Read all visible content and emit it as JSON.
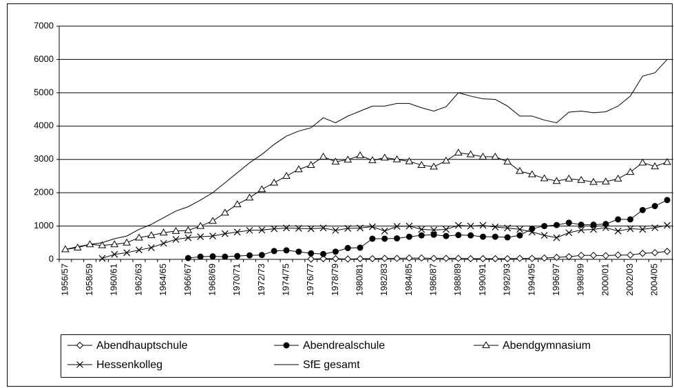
{
  "chart_data": {
    "type": "line",
    "categories": [
      "1956/57",
      null,
      "1958/59",
      null,
      "1960/61",
      null,
      "1962/63",
      null,
      "1964/65",
      null,
      "1966/67",
      null,
      "1968/69",
      null,
      "1970/71",
      null,
      "1972/73",
      null,
      "1974/75",
      null,
      "1976/77",
      null,
      "1978/79",
      null,
      "1980/81",
      null,
      "1982/83",
      null,
      "1984/85",
      null,
      "1986/87",
      null,
      "1988/89",
      null,
      "1990/91",
      null,
      "1992/93",
      null,
      "1994/95",
      null,
      "1996/97",
      null,
      "1998/99",
      null,
      "2000/01",
      null,
      "2002/03",
      null,
      "2004/05",
      null
    ],
    "ylim": [
      0,
      7000
    ],
    "yticks": [
      0,
      1000,
      2000,
      3000,
      4000,
      5000,
      6000,
      7000
    ],
    "grid": true,
    "legend": "bottom",
    "series": [
      {
        "name": "Abendhauptschule",
        "color": "#000000",
        "marker": "diamond-open",
        "values": [
          null,
          null,
          null,
          null,
          null,
          null,
          null,
          null,
          null,
          null,
          null,
          null,
          null,
          null,
          null,
          null,
          null,
          null,
          null,
          null,
          10,
          20,
          20,
          10,
          20,
          20,
          30,
          30,
          40,
          40,
          30,
          30,
          30,
          20,
          20,
          20,
          20,
          30,
          30,
          40,
          60,
          80,
          120,
          120,
          110,
          130,
          130,
          180,
          200,
          240
        ]
      },
      {
        "name": "Abendrealschule",
        "color": "#000000",
        "marker": "circle-filled",
        "values": [
          null,
          null,
          null,
          null,
          null,
          null,
          null,
          null,
          null,
          null,
          40,
          80,
          90,
          80,
          100,
          120,
          130,
          250,
          270,
          230,
          180,
          160,
          230,
          340,
          350,
          620,
          620,
          630,
          680,
          720,
          740,
          700,
          730,
          720,
          680,
          680,
          660,
          720,
          920,
          1000,
          1030,
          1100,
          1040,
          1040,
          1060,
          1200,
          1200,
          1480,
          1600,
          1780
        ]
      },
      {
        "name": "Abendgymnasium",
        "color": "#000000",
        "marker": "triangle-open",
        "values": [
          300,
          350,
          450,
          420,
          450,
          500,
          650,
          720,
          800,
          850,
          870,
          1000,
          1150,
          1400,
          1650,
          1850,
          2100,
          2300,
          2500,
          2700,
          2830,
          3080,
          2930,
          2990,
          3120,
          2970,
          3050,
          3000,
          2940,
          2830,
          2780,
          2960,
          3200,
          3150,
          3080,
          3080,
          2930,
          2650,
          2550,
          2430,
          2350,
          2420,
          2380,
          2320,
          2330,
          2420,
          2620,
          2900,
          2790,
          2920
        ]
      },
      {
        "name": "Hessenkolleg",
        "color": "#000000",
        "marker": "x",
        "values": [
          null,
          null,
          null,
          30,
          150,
          200,
          280,
          350,
          480,
          600,
          650,
          680,
          700,
          770,
          820,
          870,
          880,
          920,
          940,
          930,
          920,
          940,
          870,
          930,
          940,
          980,
          850,
          990,
          1000,
          900,
          880,
          900,
          1020,
          1000,
          1020,
          970,
          940,
          900,
          820,
          720,
          650,
          800,
          880,
          900,
          950,
          850,
          920,
          900,
          950,
          1020
        ]
      },
      {
        "name": "SfE gesamt",
        "color": "#000000",
        "marker": "none",
        "values": [
          300,
          380,
          450,
          500,
          620,
          700,
          900,
          1050,
          1250,
          1450,
          1580,
          1780,
          2000,
          2300,
          2600,
          2900,
          3150,
          3450,
          3700,
          3850,
          3950,
          4250,
          4100,
          4300,
          4450,
          4600,
          4600,
          4680,
          4680,
          4550,
          4450,
          4580,
          5000,
          4900,
          4820,
          4800,
          4600,
          4300,
          4300,
          4180,
          4100,
          4420,
          4450,
          4400,
          4430,
          4600,
          4900,
          5500,
          5600,
          6000
        ]
      }
    ]
  }
}
